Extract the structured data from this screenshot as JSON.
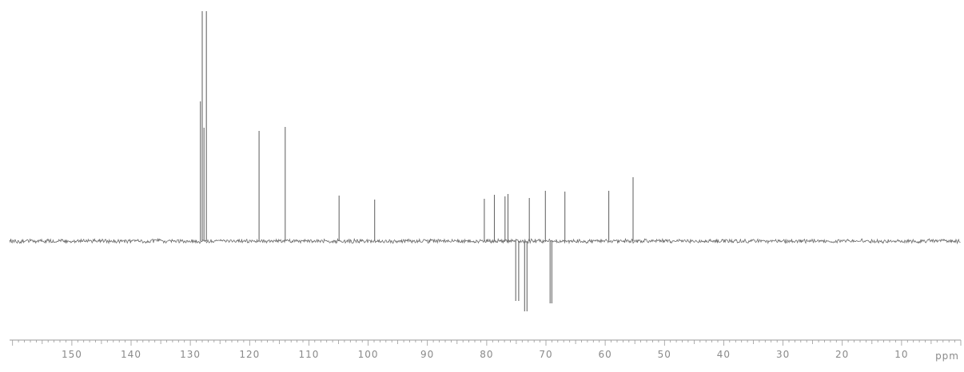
{
  "chart_data": {
    "type": "line",
    "title": "",
    "xlabel": "ppm",
    "ylabel": "",
    "x_reversed": true,
    "xlim": [
      160.5,
      0
    ],
    "ylim": [
      -1.0,
      2.75
    ],
    "grid": false,
    "legend": "none",
    "x_ticks": [
      150,
      140,
      130,
      120,
      110,
      100,
      90,
      80,
      70,
      60,
      50,
      40,
      30,
      20,
      10
    ],
    "x_tick_labels": [
      "150",
      "140",
      "130",
      "120",
      "110",
      "100",
      "90",
      "80",
      "70",
      "60",
      "50",
      "40",
      "30",
      "20",
      "10"
    ],
    "peaks": [
      {
        "ppm": 128.3,
        "intensity": 1.75
      },
      {
        "ppm": 128.0,
        "intensity": 2.9
      },
      {
        "ppm": 127.7,
        "intensity": 1.42
      },
      {
        "ppm": 127.3,
        "intensity": 2.9
      },
      {
        "ppm": 118.4,
        "intensity": 1.38
      },
      {
        "ppm": 114.0,
        "intensity": 1.43
      },
      {
        "ppm": 104.9,
        "intensity": 0.57
      },
      {
        "ppm": 98.9,
        "intensity": 0.52
      },
      {
        "ppm": 80.4,
        "intensity": 0.53
      },
      {
        "ppm": 78.7,
        "intensity": 0.58
      },
      {
        "ppm": 76.9,
        "intensity": 0.56
      },
      {
        "ppm": 76.4,
        "intensity": 0.59
      },
      {
        "ppm": 75.1,
        "intensity": -0.75
      },
      {
        "ppm": 74.6,
        "intensity": -0.75
      },
      {
        "ppm": 73.6,
        "intensity": -0.88
      },
      {
        "ppm": 73.2,
        "intensity": -0.88
      },
      {
        "ppm": 72.8,
        "intensity": 0.54
      },
      {
        "ppm": 70.1,
        "intensity": 0.63
      },
      {
        "ppm": 69.3,
        "intensity": -0.78
      },
      {
        "ppm": 69.0,
        "intensity": -0.78
      },
      {
        "ppm": 66.8,
        "intensity": 0.62
      },
      {
        "ppm": 59.4,
        "intensity": 0.63
      },
      {
        "ppm": 55.3,
        "intensity": 0.8
      }
    ],
    "colors": {
      "trace": "#6a6a6a",
      "axis": "#9a9a9a",
      "labels": "#8a8a8a"
    }
  }
}
